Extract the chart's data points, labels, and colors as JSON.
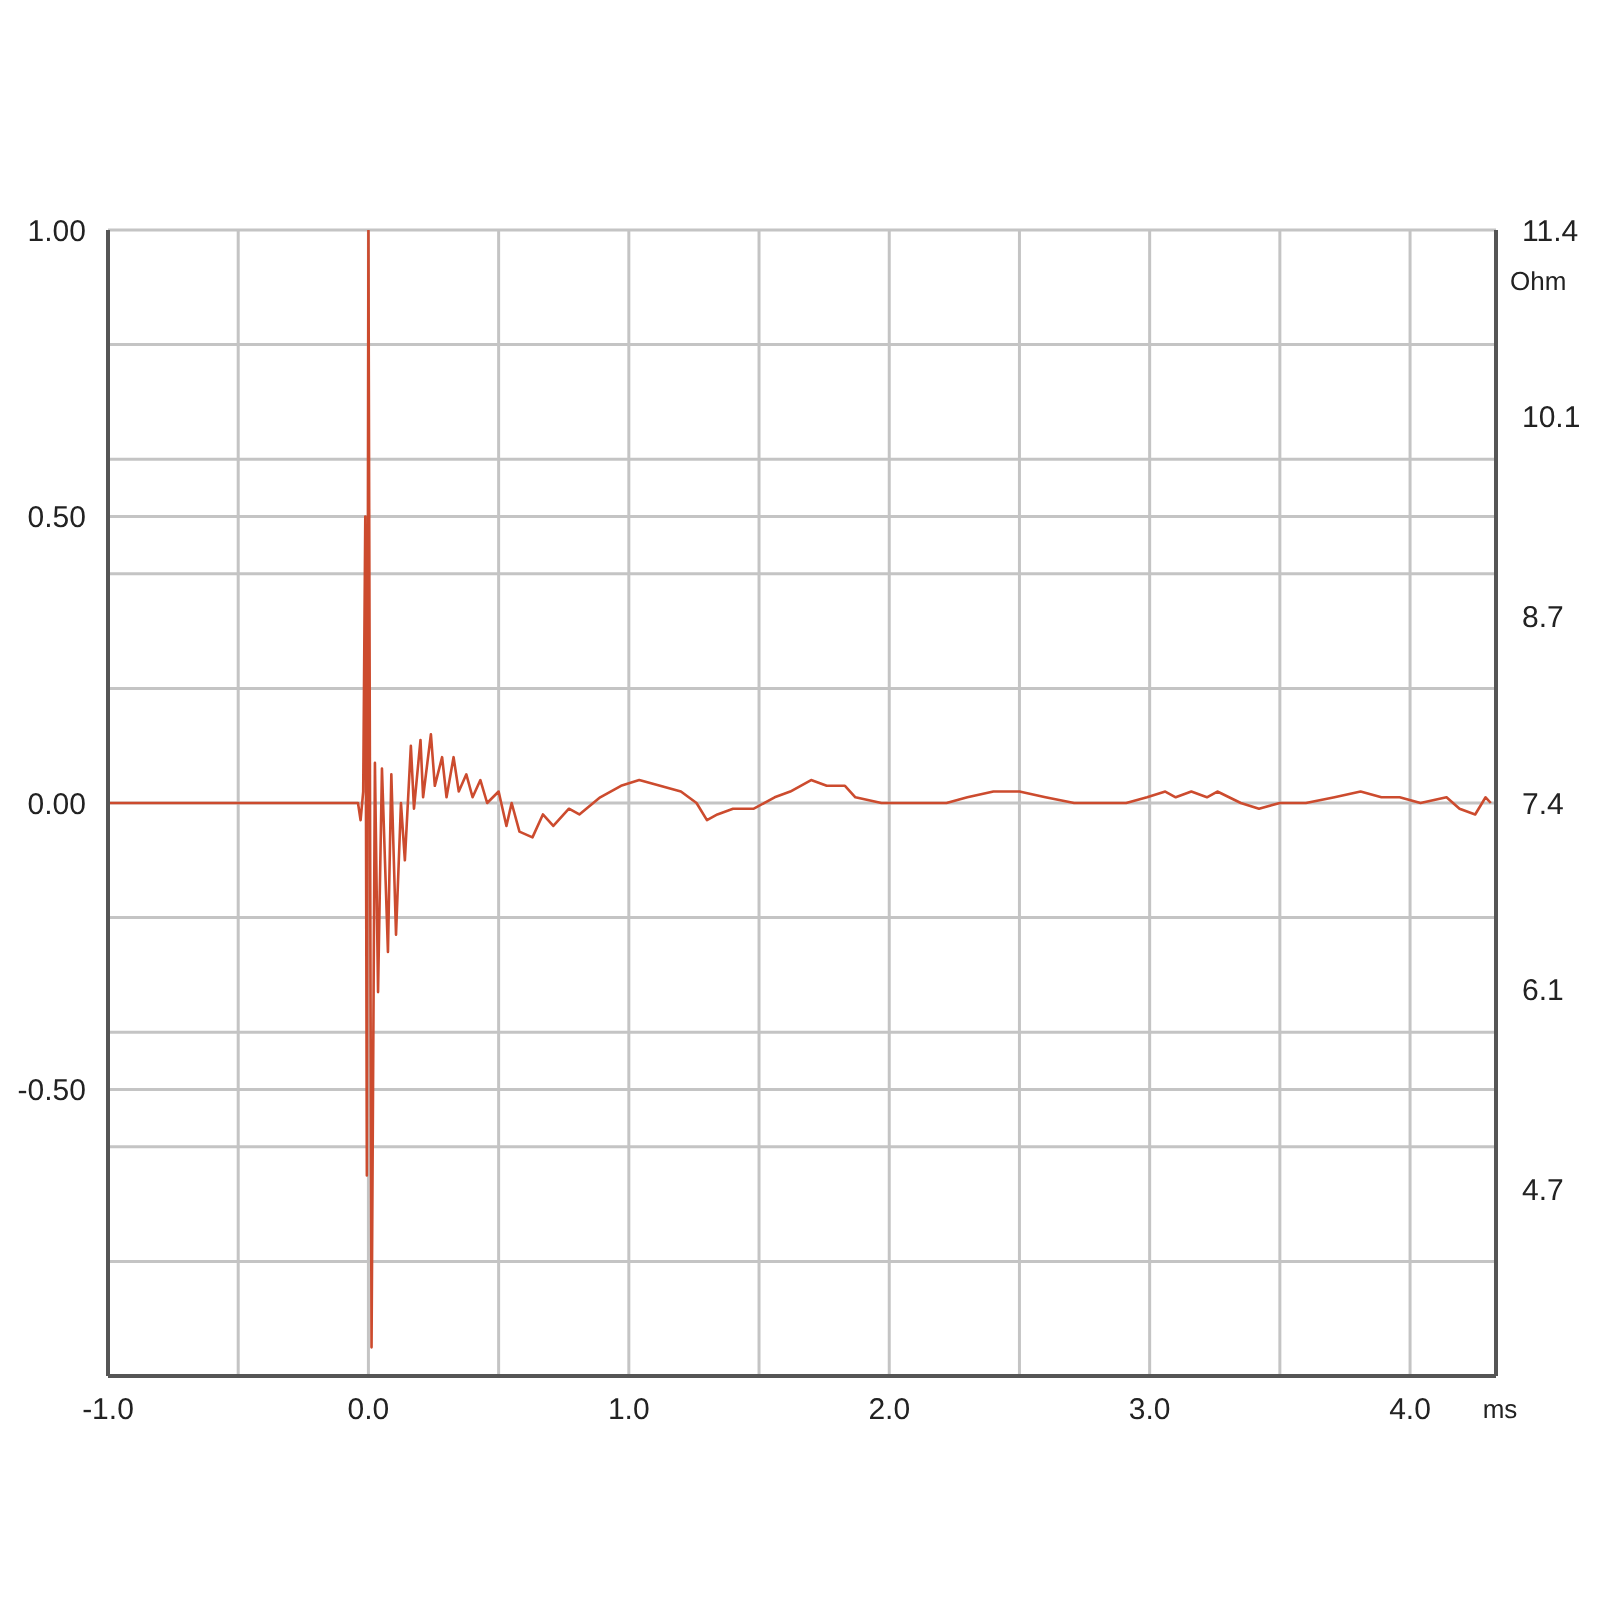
{
  "chart_data": {
    "type": "line",
    "xlabel": "ms",
    "y2label": "Ohm",
    "color": "#cc4b2e",
    "grid": true,
    "xlim": [
      -1,
      4.33
    ],
    "xticks": [
      {
        "value": -1,
        "label": "-1.0"
      },
      {
        "value": -0.5,
        "label": null
      },
      {
        "value": 0,
        "label": "0.0"
      },
      {
        "value": 0.5,
        "label": null
      },
      {
        "value": 1,
        "label": "1.0"
      },
      {
        "value": 1.5,
        "label": null
      },
      {
        "value": 2,
        "label": "2.0"
      },
      {
        "value": 2.5,
        "label": null
      },
      {
        "value": 3,
        "label": "3.0"
      },
      {
        "value": 3.5,
        "label": null
      },
      {
        "value": 4,
        "label": "4.0"
      }
    ],
    "ylim": [
      -1,
      1
    ],
    "yticks": [
      {
        "value": -1,
        "label": null
      },
      {
        "value": -0.8,
        "label": null
      },
      {
        "value": -0.6,
        "label": null
      },
      {
        "value": -0.5,
        "label": "-0.50"
      },
      {
        "value": -0.4,
        "label": null
      },
      {
        "value": -0.2,
        "label": null
      },
      {
        "value": 0,
        "label": "0.00"
      },
      {
        "value": 0.2,
        "label": null
      },
      {
        "value": 0.4,
        "label": null
      },
      {
        "value": 0.5,
        "label": "0.50"
      },
      {
        "value": 0.6,
        "label": null
      },
      {
        "value": 0.8,
        "label": null
      },
      {
        "value": 1,
        "label": "1.00"
      }
    ],
    "y2lim": [
      3.4,
      11.4
    ],
    "y2ticks": [
      4.7,
      6.1,
      7.4,
      8.7,
      10.1,
      11.4
    ],
    "x": [
      -1,
      -0.5,
      -0.08,
      -0.04,
      -0.03,
      -0.02,
      -0.012,
      -0.006,
      0,
      0.012,
      0.025,
      0.037,
      0.052,
      0.075,
      0.088,
      0.106,
      0.125,
      0.14,
      0.163,
      0.175,
      0.2,
      0.21,
      0.24,
      0.255,
      0.283,
      0.3,
      0.327,
      0.347,
      0.376,
      0.4,
      0.43,
      0.456,
      0.5,
      0.53,
      0.55,
      0.58,
      0.63,
      0.67,
      0.71,
      0.77,
      0.81,
      0.89,
      0.97,
      1.04,
      1.12,
      1.2,
      1.26,
      1.3,
      1.34,
      1.4,
      1.48,
      1.56,
      1.62,
      1.7,
      1.76,
      1.83,
      1.87,
      1.97,
      2.07,
      2.22,
      2.3,
      2.4,
      2.5,
      2.6,
      2.71,
      2.91,
      2.99,
      3.06,
      3.1,
      3.16,
      3.22,
      3.26,
      3.35,
      3.42,
      3.5,
      3.6,
      3.71,
      3.81,
      3.89,
      3.96,
      4.04,
      4.14,
      4.19,
      4.25,
      4.29,
      4.31
    ],
    "values": [
      0,
      0,
      0,
      0,
      -0.03,
      0.02,
      0.5,
      -0.65,
      1,
      -0.95,
      0.07,
      -0.33,
      0.06,
      -0.26,
      0.05,
      -0.23,
      0,
      -0.1,
      0.1,
      -0.01,
      0.11,
      0.01,
      0.12,
      0.03,
      0.08,
      0.01,
      0.08,
      0.02,
      0.05,
      0.01,
      0.04,
      0,
      0.02,
      -0.04,
      0,
      -0.05,
      -0.06,
      -0.02,
      -0.04,
      -0.01,
      -0.02,
      0.01,
      0.03,
      0.04,
      0.03,
      0.02,
      0,
      -0.03,
      -0.02,
      -0.01,
      -0.01,
      0.01,
      0.02,
      0.04,
      0.03,
      0.03,
      0.01,
      0,
      0,
      0,
      0.01,
      0.02,
      0.02,
      0.01,
      0,
      0,
      0.01,
      0.02,
      0.01,
      0.02,
      0.01,
      0.02,
      0,
      -0.01,
      0,
      0,
      0.01,
      0.02,
      0.01,
      0.01,
      0,
      0.01,
      -0.01,
      -0.02,
      0.01,
      0
    ]
  }
}
